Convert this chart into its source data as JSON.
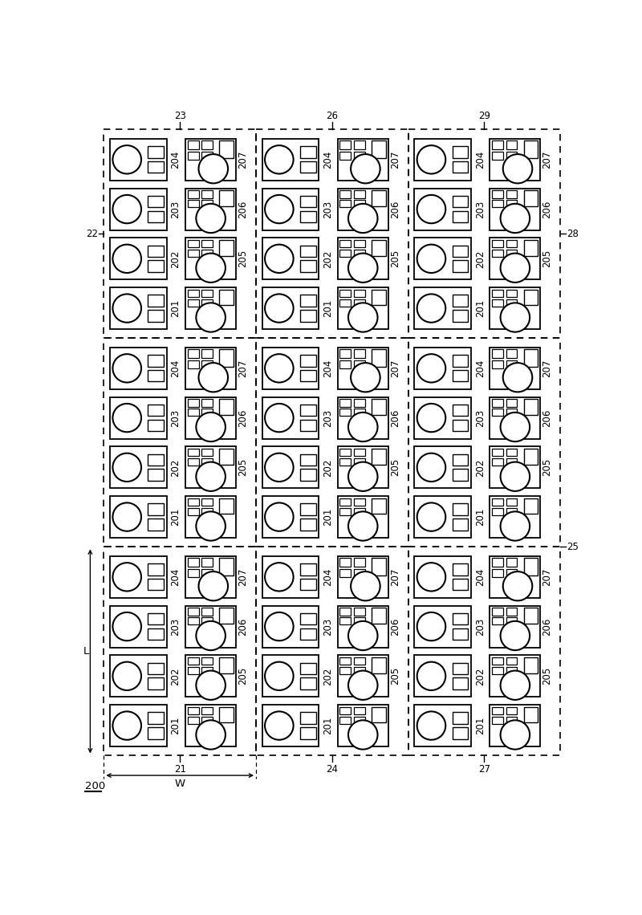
{
  "fig_width": 8.0,
  "fig_height": 11.4,
  "bg_color": "#ffffff",
  "col_labels_top": [
    "23",
    "26",
    "29"
  ],
  "col_labels_bottom": [
    "21",
    "24",
    "27"
  ],
  "label_22": "22",
  "label_28": "28",
  "label_25": "25",
  "label_200": "200",
  "label_L": "L",
  "label_W": "W",
  "between_labels": [
    "204",
    "203",
    "202",
    "201"
  ],
  "right_labels": [
    "207",
    "206",
    "205"
  ],
  "font_size": 8.5
}
